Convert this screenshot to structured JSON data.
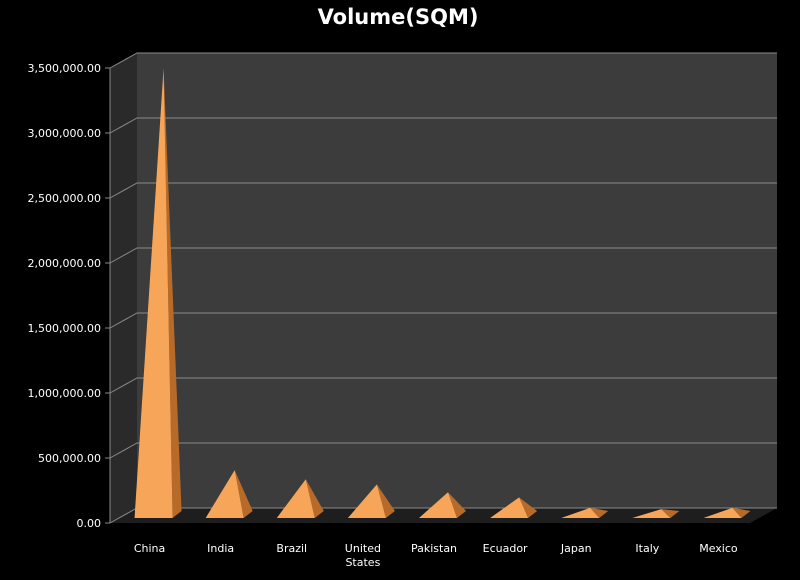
{
  "chart_data": {
    "type": "bar",
    "shape": "pyramid-3d",
    "title": "Volume(SQM)",
    "xlabel": "",
    "ylabel": "",
    "categories": [
      "China",
      "India",
      "Brazil",
      "United States",
      "Pakistan",
      "Ecuador",
      "Japan",
      "Italy",
      "Mexico"
    ],
    "values": [
      3420000,
      330000,
      260000,
      220000,
      160000,
      120000,
      40000,
      30000,
      40000
    ],
    "ylim": [
      0,
      3500000
    ],
    "y_ticks": [
      "0.00",
      "500,000.00",
      "1,000,000.00",
      "1,500,000.00",
      "2,000,000.00",
      "2,500,000.00",
      "3,000,000.00",
      "3,500,000.00"
    ],
    "grid": true,
    "legend": "none",
    "colors": {
      "background": "#000000",
      "plot_back_wall": "#3c3c3c",
      "plot_side_wall": "#2a2a2a",
      "floor": "#1e1e1e",
      "gridline": "#8a8a8a",
      "pyramid_light": "#f7a659",
      "pyramid_dark": "#b86a28",
      "text": "#ffffff"
    }
  }
}
